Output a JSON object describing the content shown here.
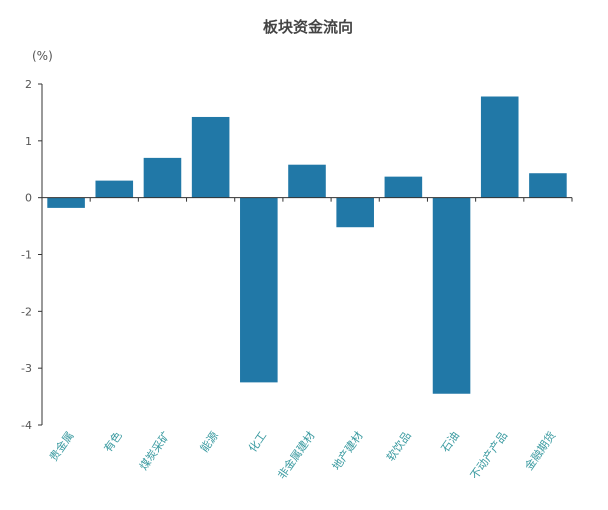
{
  "chart_data": {
    "type": "bar",
    "title": "板块资金流向",
    "ylabel": "(%)",
    "categories": [
      "贵金属",
      "有色",
      "煤炭采矿",
      "能源",
      "化工",
      "非金属建材",
      "地产建材",
      "软饮品",
      "石油",
      "不动产产品",
      "金融期货"
    ],
    "values": [
      -0.18,
      0.3,
      0.7,
      1.42,
      -3.25,
      0.58,
      -0.52,
      0.37,
      -3.45,
      1.78,
      0.43
    ],
    "ylim": [
      -4,
      2
    ],
    "yticks": [
      "2",
      "1",
      "0",
      "-1",
      "-2",
      "-3",
      "-4"
    ],
    "grid": false,
    "legend": "none",
    "bar_color": "#2178a7"
  }
}
